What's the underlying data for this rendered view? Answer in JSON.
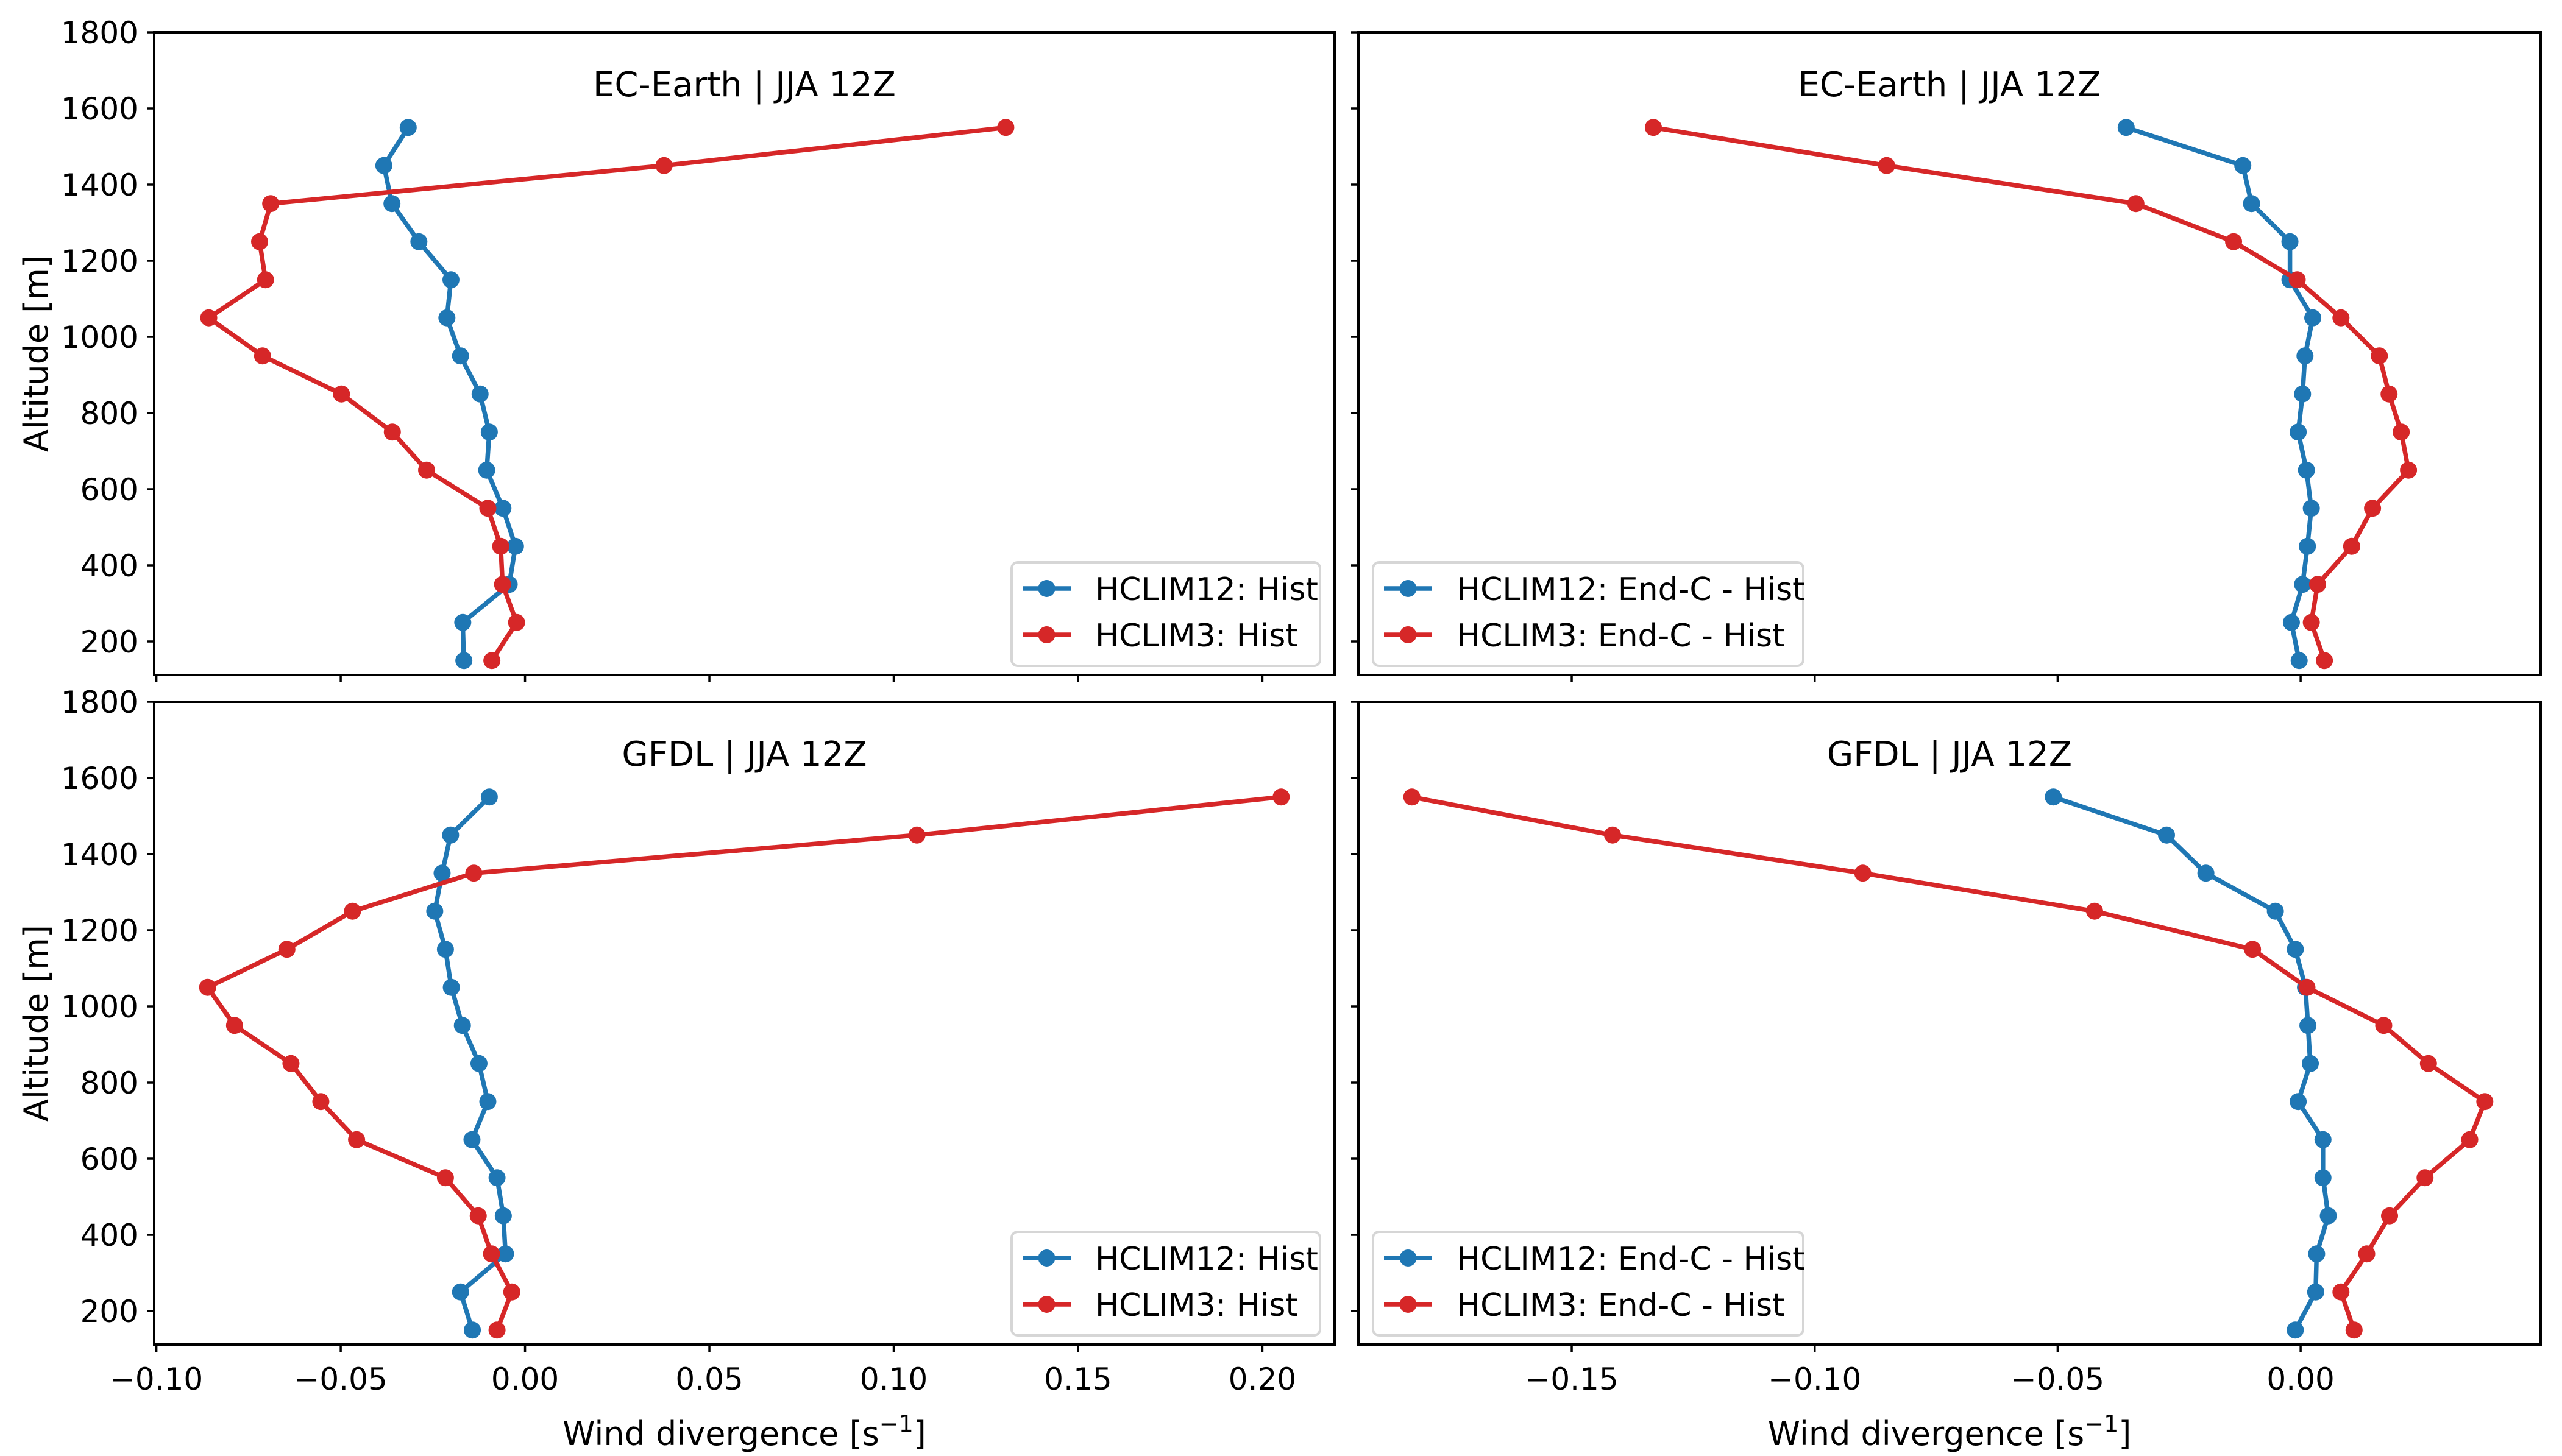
{
  "colors": {
    "hclim12": "#1f77b4",
    "hclim3": "#d62728"
  },
  "chart_data": [
    {
      "type": "line",
      "panel": "top-left",
      "title": "EC-Earth | JJA 12Z",
      "xlabel": "",
      "ylabel": "Altitude [m]",
      "xlim": [
        -0.1006,
        0.2196
      ],
      "ylim": [
        112,
        1800
      ],
      "xticks": [
        -0.1,
        -0.05,
        0.0,
        0.05,
        0.1,
        0.15,
        0.2
      ],
      "xtick_labels": [],
      "yticks": [
        200,
        400,
        600,
        800,
        1000,
        1200,
        1400,
        1600,
        1800
      ],
      "ytick_labels": [
        "200",
        "400",
        "600",
        "800",
        "1000",
        "1200",
        "1400",
        "1600",
        "1800"
      ],
      "legend_position": "lower right",
      "y": [
        1550,
        1450,
        1350,
        1250,
        1150,
        1050,
        950,
        850,
        750,
        650,
        550,
        450,
        350,
        250,
        150
      ],
      "series": [
        {
          "name": "HCLIM12: Hist",
          "color_key": "hclim12",
          "values": [
            -0.0317,
            -0.0383,
            -0.0361,
            -0.0288,
            -0.0201,
            -0.0212,
            -0.0175,
            -0.0122,
            -0.0097,
            -0.0104,
            -0.006,
            -0.0026,
            -0.0043,
            -0.0169,
            -0.0166
          ]
        },
        {
          "name": "HCLIM3: Hist",
          "color_key": "hclim3",
          "values": [
            0.1304,
            0.0377,
            -0.069,
            -0.072,
            -0.0704,
            -0.0858,
            -0.0712,
            -0.0498,
            -0.036,
            -0.0267,
            -0.0101,
            -0.0066,
            -0.0061,
            -0.0023,
            -0.009
          ]
        }
      ]
    },
    {
      "type": "line",
      "panel": "top-right",
      "title": "EC-Earth | JJA 12Z",
      "xlabel": "",
      "ylabel": "",
      "xlim": [
        -0.1939,
        0.0494
      ],
      "ylim": [
        112,
        1800
      ],
      "xticks": [
        -0.15,
        -0.1,
        -0.05,
        0.0
      ],
      "xtick_labels": [],
      "yticks": [
        200,
        400,
        600,
        800,
        1000,
        1200,
        1400,
        1600,
        1800
      ],
      "ytick_labels": [],
      "legend_position": "lower left",
      "y": [
        1550,
        1450,
        1350,
        1250,
        1150,
        1050,
        950,
        850,
        750,
        650,
        550,
        450,
        350,
        250,
        150
      ],
      "series": [
        {
          "name": "HCLIM12: End-C - Hist",
          "color_key": "hclim12",
          "values": [
            -0.0359,
            -0.0119,
            -0.0101,
            -0.0022,
            -0.0022,
            0.0025,
            0.0009,
            0.0004,
            -0.0005,
            0.0012,
            0.0022,
            0.0014,
            0.0004,
            -0.0019,
            -0.0003
          ]
        },
        {
          "name": "HCLIM3: End-C - Hist",
          "color_key": "hclim3",
          "values": [
            -0.1332,
            -0.0852,
            -0.0339,
            -0.0138,
            -0.0007,
            0.0083,
            0.0162,
            0.0182,
            0.0207,
            0.0222,
            0.0148,
            0.0105,
            0.0035,
            0.0022,
            0.0049
          ]
        }
      ]
    },
    {
      "type": "line",
      "panel": "bottom-left",
      "title": "GFDL | JJA 12Z",
      "xlabel": "Wind divergence [s",
      "xlabel_sup": "−1",
      "xlabel_end": "]",
      "ylabel": "Altitude [m]",
      "xlim": [
        -0.1006,
        0.2196
      ],
      "ylim": [
        112,
        1800
      ],
      "xticks": [
        -0.1,
        -0.05,
        0.0,
        0.05,
        0.1,
        0.15,
        0.2
      ],
      "xtick_labels": [
        "−0.10",
        "−0.05",
        "0.00",
        "0.05",
        "0.10",
        "0.15",
        "0.20"
      ],
      "yticks": [
        200,
        400,
        600,
        800,
        1000,
        1200,
        1400,
        1600,
        1800
      ],
      "ytick_labels": [
        "200",
        "400",
        "600",
        "800",
        "1000",
        "1200",
        "1400",
        "1600",
        "1800"
      ],
      "legend_position": "lower right",
      "y": [
        1550,
        1450,
        1350,
        1250,
        1150,
        1050,
        950,
        850,
        750,
        650,
        550,
        450,
        350,
        250,
        150
      ],
      "series": [
        {
          "name": "HCLIM12: Hist",
          "color_key": "hclim12",
          "values": [
            -0.0097,
            -0.0202,
            -0.0225,
            -0.0245,
            -0.0216,
            -0.02,
            -0.017,
            -0.0125,
            -0.0101,
            -0.0144,
            -0.0076,
            -0.0059,
            -0.0053,
            -0.0175,
            -0.0143
          ]
        },
        {
          "name": "HCLIM3: Hist",
          "color_key": "hclim3",
          "values": [
            0.2051,
            0.1063,
            -0.0139,
            -0.0468,
            -0.0646,
            -0.0861,
            -0.0788,
            -0.0635,
            -0.0554,
            -0.0457,
            -0.0216,
            -0.0127,
            -0.0091,
            -0.0036,
            -0.0076
          ]
        }
      ]
    },
    {
      "type": "line",
      "panel": "bottom-right",
      "title": "GFDL | JJA 12Z",
      "xlabel": "Wind divergence [s",
      "xlabel_sup": "−1",
      "xlabel_end": "]",
      "ylabel": "",
      "xlim": [
        -0.1939,
        0.0494
      ],
      "ylim": [
        112,
        1800
      ],
      "xticks": [
        -0.15,
        -0.1,
        -0.05,
        0.0
      ],
      "xtick_labels": [
        "−0.15",
        "−0.10",
        "−0.05",
        "0.00"
      ],
      "yticks": [
        200,
        400,
        600,
        800,
        1000,
        1200,
        1400,
        1600,
        1800
      ],
      "ytick_labels": [],
      "legend_position": "lower left",
      "y": [
        1550,
        1450,
        1350,
        1250,
        1150,
        1050,
        950,
        850,
        750,
        650,
        550,
        450,
        350,
        250,
        150
      ],
      "series": [
        {
          "name": "HCLIM12: End-C - Hist",
          "color_key": "hclim12",
          "values": [
            -0.0509,
            -0.0276,
            -0.0195,
            -0.0052,
            -0.0011,
            0.001,
            0.0015,
            0.002,
            -0.0005,
            0.0046,
            0.0046,
            0.0057,
            0.0033,
            0.0031,
            -0.0011
          ]
        },
        {
          "name": "HCLIM3: End-C - Hist",
          "color_key": "hclim3",
          "values": [
            -0.1829,
            -0.1416,
            -0.0901,
            -0.0424,
            -0.0099,
            0.0013,
            0.0171,
            0.0263,
            0.0379,
            0.0348,
            0.0256,
            0.0183,
            0.0136,
            0.0083,
            0.011
          ]
        }
      ]
    }
  ]
}
